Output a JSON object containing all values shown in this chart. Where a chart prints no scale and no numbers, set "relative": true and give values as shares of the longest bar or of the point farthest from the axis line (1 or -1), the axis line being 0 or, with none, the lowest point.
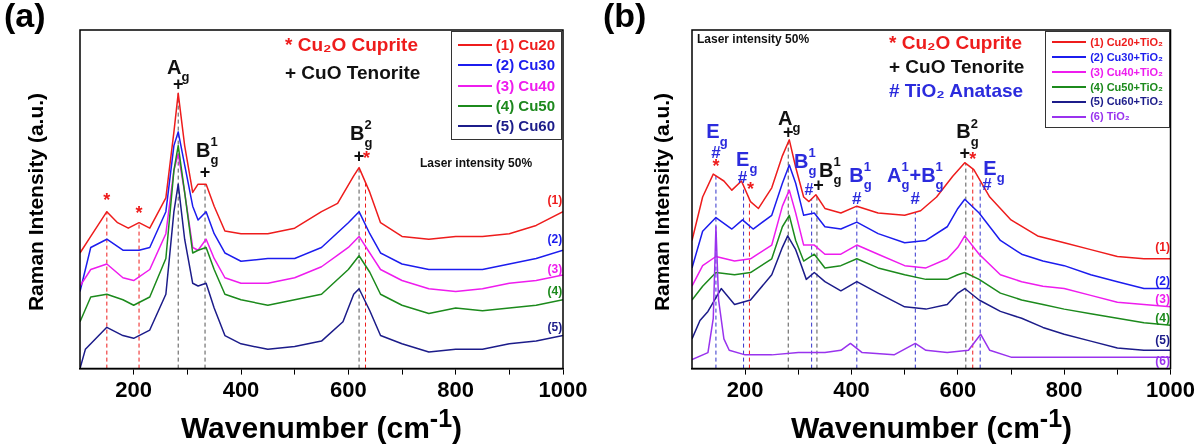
{
  "chart_data": [
    {
      "type": "line",
      "title": "(a)",
      "xlabel": "Wavenumber (cm$^{-1}$)",
      "ylabel": "Raman Intensity (a.u.)",
      "relative": true,
      "xlim": [
        100,
        1000
      ],
      "xticks": [
        200,
        {
          "value": 300,
          "label": null
        },
        400,
        {
          "value": 500,
          "label": null
        },
        600,
        {
          "value": 700,
          "label": null
        },
        800,
        {
          "value": 900,
          "label": null
        },
        1000
      ],
      "legend": "top right",
      "line_style": "solid",
      "series": [
        {
          "name": "(1) Cu20",
          "color": "#ee1c1c",
          "x": [
            100,
            120,
            150,
            170,
            190,
            210,
            230,
            260,
            275,
            283,
            295,
            310,
            320,
            335,
            350,
            370,
            400,
            450,
            500,
            550,
            580,
            610,
            620,
            640,
            660,
            700,
            750,
            800,
            850,
            900,
            950,
            1000
          ],
          "values": [
            0.42,
            0.48,
            0.57,
            0.53,
            0.51,
            0.53,
            0.51,
            0.62,
            0.86,
            1,
            0.81,
            0.64,
            0.67,
            0.67,
            0.59,
            0.5,
            0.49,
            0.49,
            0.51,
            0.57,
            0.6,
            0.7,
            0.73,
            0.64,
            0.53,
            0.48,
            0.47,
            0.48,
            0.48,
            0.49,
            0.52,
            0.57
          ]
        },
        {
          "name": "(2) Cu30",
          "color": "#1c1cee",
          "x": [
            100,
            120,
            150,
            180,
            210,
            230,
            260,
            275,
            283,
            295,
            310,
            320,
            335,
            350,
            370,
            400,
            450,
            500,
            550,
            600,
            620,
            640,
            660,
            700,
            750,
            800,
            850,
            900,
            950,
            1000
          ],
          "values": [
            0.28,
            0.44,
            0.47,
            0.43,
            0.43,
            0.44,
            0.57,
            0.81,
            0.86,
            0.74,
            0.59,
            0.54,
            0.57,
            0.49,
            0.42,
            0.39,
            0.4,
            0.4,
            0.44,
            0.53,
            0.57,
            0.49,
            0.42,
            0.38,
            0.36,
            0.36,
            0.36,
            0.38,
            0.4,
            0.43
          ]
        },
        {
          "name": "(3) Cu40",
          "color": "#ee1cee",
          "x": [
            100,
            120,
            150,
            180,
            200,
            230,
            260,
            275,
            283,
            295,
            310,
            320,
            335,
            350,
            370,
            400,
            450,
            500,
            550,
            600,
            620,
            640,
            660,
            700,
            750,
            800,
            850,
            900,
            950,
            1000
          ],
          "values": [
            0.3,
            0.36,
            0.38,
            0.33,
            0.32,
            0.36,
            0.49,
            0.72,
            0.78,
            0.64,
            0.44,
            0.43,
            0.47,
            0.4,
            0.33,
            0.31,
            0.31,
            0.33,
            0.37,
            0.44,
            0.48,
            0.42,
            0.36,
            0.32,
            0.29,
            0.28,
            0.29,
            0.31,
            0.32,
            0.34
          ]
        },
        {
          "name": "(4) Cu50",
          "color": "#1c8a1c",
          "x": [
            100,
            120,
            150,
            180,
            200,
            230,
            260,
            275,
            283,
            295,
            310,
            320,
            335,
            350,
            370,
            400,
            450,
            500,
            550,
            600,
            620,
            640,
            660,
            700,
            750,
            800,
            850,
            900,
            950,
            1000
          ],
          "values": [
            0.17,
            0.26,
            0.27,
            0.25,
            0.23,
            0.26,
            0.4,
            0.72,
            0.81,
            0.64,
            0.42,
            0.43,
            0.44,
            0.36,
            0.27,
            0.25,
            0.23,
            0.25,
            0.27,
            0.36,
            0.41,
            0.35,
            0.27,
            0.23,
            0.2,
            0.22,
            0.21,
            0.22,
            0.23,
            0.25
          ]
        },
        {
          "name": "(5) Cu60",
          "color": "#1c1c8a",
          "x": [
            100,
            110,
            130,
            150,
            180,
            200,
            230,
            260,
            275,
            283,
            295,
            310,
            320,
            335,
            350,
            370,
            400,
            450,
            500,
            550,
            590,
            610,
            620,
            640,
            660,
            700,
            750,
            800,
            850,
            900,
            950,
            1000
          ],
          "values": [
            0,
            0.07,
            0.11,
            0.15,
            0.12,
            0.11,
            0.14,
            0.27,
            0.57,
            0.67,
            0.47,
            0.31,
            0.3,
            0.31,
            0.22,
            0.12,
            0.09,
            0.07,
            0.08,
            0.1,
            0.17,
            0.27,
            0.29,
            0.21,
            0.12,
            0.09,
            0.06,
            0.07,
            0.07,
            0.09,
            0.1,
            0.12
          ]
        }
      ],
      "ref_lines": [
        {
          "axis": "x",
          "value": 150,
          "color": "#ee1c1c",
          "line_style": "dashed"
        },
        {
          "axis": "x",
          "value": 210,
          "color": "#ee1c1c",
          "line_style": "dashed"
        },
        {
          "axis": "x",
          "value": 283,
          "color": "#555555",
          "line_style": "dashed"
        },
        {
          "axis": "x",
          "value": 333,
          "color": "#555555",
          "line_style": "dashed"
        },
        {
          "axis": "x",
          "value": 620,
          "color": "#555555",
          "line_style": "dashed"
        },
        {
          "axis": "x",
          "value": 632,
          "color": "#ee1c1c",
          "line_style": "dashed"
        }
      ],
      "annotations": [
        "* Cu₂O Cuprite",
        "+ CuO Tenorite",
        "Laser intensity 50%",
        "*",
        "*",
        "A$_{g}$",
        "+",
        "B$^{1}$$_{g}$",
        "+",
        "B$^{2}$$_{g}$",
        "+",
        "*",
        "(1)",
        "(2)",
        "(3)",
        "(4)",
        "(5)"
      ]
    },
    {
      "type": "line",
      "title": "(b)",
      "xlabel": "Wavenumber (cm$^{-1}$)",
      "ylabel": "Raman Intensity (a.u.)",
      "relative": true,
      "xlim": [
        100,
        1000
      ],
      "xticks": [
        200,
        {
          "value": 300,
          "label": null
        },
        400,
        {
          "value": 500,
          "label": null
        },
        600,
        {
          "value": 700,
          "label": null
        },
        800,
        {
          "value": 900,
          "label": null
        },
        1000
      ],
      "legend": "top right",
      "line_style": "solid",
      "series": [
        {
          "name": "(1) Cu20+TiO₂",
          "color": "#ee1c1c",
          "x": [
            100,
            120,
            140,
            160,
            175,
            193,
            210,
            225,
            250,
            270,
            283,
            295,
            310,
            320,
            333,
            350,
            380,
            410,
            450,
            500,
            530,
            560,
            590,
            613,
            630,
            660,
            700,
            750,
            800,
            850,
            900,
            950,
            1000
          ],
          "values": [
            0.56,
            0.75,
            0.85,
            0.82,
            0.78,
            0.82,
            0.73,
            0.7,
            0.79,
            0.93,
            1,
            0.88,
            0.75,
            0.73,
            0.76,
            0.7,
            0.68,
            0.71,
            0.68,
            0.67,
            0.69,
            0.75,
            0.84,
            0.9,
            0.87,
            0.75,
            0.65,
            0.58,
            0.55,
            0.52,
            0.49,
            0.48,
            0.48
          ]
        },
        {
          "name": "(2) Cu30+TiO₂",
          "color": "#1c1cee",
          "x": [
            100,
            120,
            145,
            175,
            195,
            215,
            250,
            270,
            283,
            295,
            310,
            330,
            350,
            380,
            410,
            450,
            500,
            540,
            580,
            600,
            613,
            640,
            680,
            720,
            760,
            800,
            850,
            900,
            950,
            1000
          ],
          "values": [
            0.44,
            0.6,
            0.66,
            0.61,
            0.65,
            0.61,
            0.67,
            0.81,
            0.89,
            0.81,
            0.67,
            0.68,
            0.62,
            0.61,
            0.64,
            0.59,
            0.55,
            0.56,
            0.62,
            0.7,
            0.74,
            0.68,
            0.56,
            0.5,
            0.47,
            0.45,
            0.41,
            0.38,
            0.35,
            0.35
          ]
        },
        {
          "name": "(3) Cu40+TiO₂",
          "color": "#ee1cee",
          "x": [
            100,
            120,
            145,
            180,
            210,
            250,
            270,
            283,
            295,
            310,
            330,
            350,
            380,
            410,
            450,
            500,
            540,
            580,
            600,
            613,
            640,
            680,
            720,
            760,
            800,
            850,
            900,
            950,
            1000
          ],
          "values": [
            0.36,
            0.45,
            0.49,
            0.47,
            0.48,
            0.54,
            0.71,
            0.78,
            0.68,
            0.54,
            0.54,
            0.5,
            0.5,
            0.54,
            0.5,
            0.45,
            0.44,
            0.48,
            0.53,
            0.58,
            0.5,
            0.41,
            0.38,
            0.36,
            0.35,
            0.32,
            0.29,
            0.28,
            0.27
          ]
        },
        {
          "name": "(4) Cu50+TiO₂",
          "color": "#1c8a1c",
          "x": [
            100,
            120,
            145,
            180,
            210,
            250,
            270,
            283,
            295,
            310,
            330,
            350,
            380,
            410,
            450,
            500,
            540,
            580,
            600,
            613,
            640,
            680,
            720,
            760,
            800,
            850,
            900,
            950,
            1000
          ],
          "values": [
            0.3,
            0.36,
            0.42,
            0.41,
            0.42,
            0.48,
            0.62,
            0.67,
            0.56,
            0.47,
            0.5,
            0.44,
            0.45,
            0.48,
            0.44,
            0.41,
            0.39,
            0.39,
            0.41,
            0.42,
            0.39,
            0.33,
            0.3,
            0.28,
            0.26,
            0.24,
            0.22,
            0.2,
            0.19
          ]
        },
        {
          "name": "(5) Cu60+TiO₂",
          "color": "#1c1c8a",
          "x": [
            100,
            115,
            130,
            155,
            180,
            210,
            250,
            270,
            280,
            295,
            315,
            330,
            350,
            380,
            410,
            450,
            500,
            540,
            580,
            600,
            613,
            640,
            680,
            720,
            760,
            800,
            850,
            900,
            950,
            1000
          ],
          "values": [
            0.13,
            0.21,
            0.25,
            0.35,
            0.28,
            0.3,
            0.41,
            0.53,
            0.58,
            0.52,
            0.39,
            0.42,
            0.38,
            0.34,
            0.38,
            0.33,
            0.27,
            0.26,
            0.28,
            0.33,
            0.35,
            0.3,
            0.25,
            0.22,
            0.18,
            0.15,
            0.12,
            0.09,
            0.08,
            0.08
          ]
        },
        {
          "name": "(6) TiO₂",
          "color": "#9933ee",
          "x": [
            100,
            130,
            140,
            145,
            150,
            160,
            170,
            200,
            250,
            300,
            350,
            380,
            398,
            420,
            480,
            520,
            540,
            580,
            620,
            643,
            660,
            700,
            800,
            900,
            1000
          ],
          "values": [
            0.04,
            0.07,
            0.22,
            0.62,
            0.3,
            0.13,
            0.08,
            0.06,
            0.06,
            0.07,
            0.07,
            0.08,
            0.11,
            0.07,
            0.06,
            0.11,
            0.08,
            0.07,
            0.08,
            0.15,
            0.08,
            0.05,
            0.05,
            0.05,
            0.05
          ]
        }
      ],
      "ref_lines": [
        {
          "axis": "x",
          "value": 145,
          "color": "#3333cc",
          "line_style": "dashed"
        },
        {
          "axis": "x",
          "value": 197,
          "color": "#3333cc",
          "line_style": "dashed"
        },
        {
          "axis": "x",
          "value": 208,
          "color": "#ee1c1c",
          "line_style": "dashed"
        },
        {
          "axis": "x",
          "value": 281,
          "color": "#555555",
          "line_style": "dashed"
        },
        {
          "axis": "x",
          "value": 325,
          "color": "#3333cc",
          "line_style": "dashed"
        },
        {
          "axis": "x",
          "value": 335,
          "color": "#555555",
          "line_style": "dashed"
        },
        {
          "axis": "x",
          "value": 410,
          "color": "#3333cc",
          "line_style": "dashed"
        },
        {
          "axis": "x",
          "value": 520,
          "color": "#3333cc",
          "line_style": "dashed"
        },
        {
          "axis": "x",
          "value": 615,
          "color": "#555555",
          "line_style": "dashed"
        },
        {
          "axis": "x",
          "value": 628,
          "color": "#ee1c1c",
          "line_style": "dashed"
        },
        {
          "axis": "x",
          "value": 642,
          "color": "#3333cc",
          "line_style": "dashed"
        }
      ],
      "annotations": [
        "Laser intensity 50%",
        "* Cu₂O Cuprite",
        "+ CuO Tenorite",
        "# TiO₂ Anatase",
        "E$_{g}$",
        "#",
        "*",
        "E$_{g}$",
        "#",
        "*",
        "A$_{g}$",
        "+",
        "B$^{1}$$_{g}$",
        "#",
        "+",
        "B$^{1}$$_{g}$",
        "B$^{1}$$_{g}$",
        "#",
        "A$^{1}$$_{g}$+B$^{1}$$_{g}$",
        "#",
        "B$^{2}$$_{g}$",
        "+",
        "*",
        "E$_{g}$",
        "#",
        "(1)",
        "(2)",
        "(3)",
        "(4)",
        "(5)",
        "(6)"
      ]
    }
  ]
}
